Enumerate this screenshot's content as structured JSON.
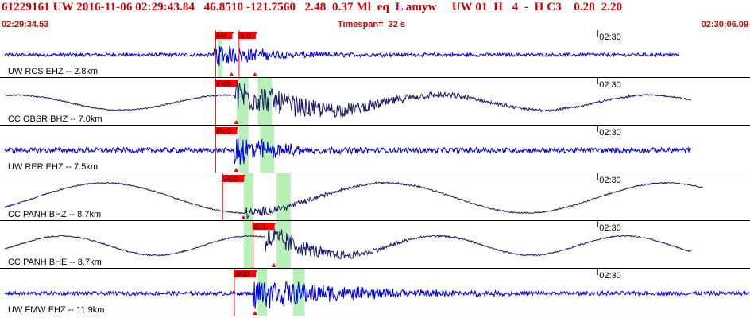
{
  "header": {
    "title_line": "61229161 UW 2016-11-06 02:29:43.84   46.8510 -121.7560   2.48  0.37 Ml  eq  L amyw     UW 01  H   4  -  H C3    0.28  2.20",
    "start_time": "02:29:34.53",
    "timespan": "Timespan=  32 s",
    "end_time": "02:30:06.09"
  },
  "colors": {
    "header_text": "#cc0000",
    "pick_flag": "#ff0000",
    "window_highlight": "#b8f0b8",
    "trace_blue": "#0000dd",
    "trace_dark": "#1a1a66"
  },
  "time_axis": {
    "start_s": 0,
    "end_s": 32,
    "minute_mark_s": 25.5,
    "minute_label": "02:30"
  },
  "traces": [
    {
      "label": "UW RCS EHZ -- 2.8km",
      "color": "blue",
      "style": "noise",
      "amp": 0.08,
      "end_s": 29,
      "picks": [
        {
          "label": "iPc",
          "t": 9.2
        },
        {
          "label": "S 0",
          "t": 10.2
        }
      ],
      "windows": [
        [
          9.3,
          9.5
        ]
      ],
      "onset_s": 9.1,
      "burst_amp": 0.55,
      "decay_s": 2.5
    },
    {
      "label": "CC OBSR BHZ -- 7.0km",
      "color": "dark",
      "style": "wave",
      "amp": 0.35,
      "period_s": 9,
      "end_s": 29.5,
      "picks": [
        {
          "label": "iPc0",
          "t": 9.2
        }
      ],
      "windows": [
        [
          10.1,
          10.6
        ],
        [
          11.0,
          11.6
        ]
      ],
      "onset_s": 10.0,
      "burst_amp": 0.8,
      "decay_s": 5
    },
    {
      "label": "UW RER EHZ -- 7.5km",
      "color": "blue",
      "style": "noise",
      "amp": 0.12,
      "end_s": 29.5,
      "picks": [
        {
          "label": "iPc0",
          "t": 9.2
        }
      ],
      "windows": [
        [
          10.2,
          10.6
        ],
        [
          11.1,
          11.7
        ]
      ],
      "onset_s": 10.0,
      "burst_amp": 0.85,
      "decay_s": 1.8
    },
    {
      "label": "CC PANH BHZ -- 8.7km",
      "color": "dark",
      "style": "wave",
      "amp": 0.7,
      "period_s": 12,
      "end_s": 30,
      "picks": [
        {
          "label": "iPc0",
          "t": 9.5
        }
      ],
      "windows": [
        [
          10.4,
          10.8
        ],
        [
          11.8,
          12.4
        ]
      ],
      "onset_s": 10.5,
      "burst_amp": 0.25,
      "decay_s": 3
    },
    {
      "label": "CC PANH BHE -- 8.7km",
      "color": "dark",
      "style": "wave",
      "amp": 0.45,
      "period_s": 8,
      "end_s": 29.5,
      "picks": [
        {
          "label": "iS 1",
          "t": 10.8
        }
      ],
      "windows": [
        [
          10.4,
          10.8
        ],
        [
          11.8,
          12.4
        ]
      ],
      "onset_s": 11.3,
      "burst_amp": 0.7,
      "decay_s": 2.5
    },
    {
      "label": "UW FMW EHZ -- 11.9km",
      "color": "blue",
      "style": "noise",
      "amp": 0.09,
      "end_s": 32,
      "picks": [
        {
          "label": "iPd0",
          "t": 10.0
        }
      ],
      "windows": [
        [
          11.0,
          11.4
        ],
        [
          12.5,
          13.0
        ]
      ],
      "onset_s": 10.8,
      "burst_amp": 0.8,
      "decay_s": 4
    }
  ]
}
